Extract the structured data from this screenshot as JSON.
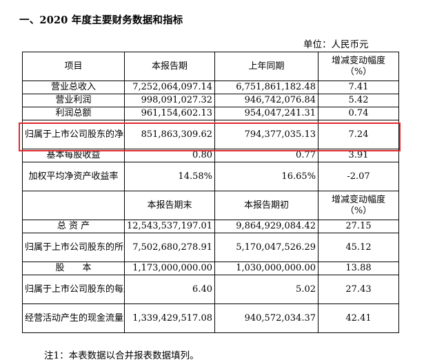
{
  "heading": "一、2020 年度主要财务数据和指标",
  "unit": "单位：人民币元",
  "section1": {
    "headers": [
      "项目",
      "本报告期",
      "上年同期",
      "增减变动幅度\n（%）"
    ],
    "rows": [
      [
        "营业总收入",
        "7,252,064,097.14",
        "6,751,861,182.48",
        "7.41"
      ],
      [
        "营业利润",
        "998,091,027.32",
        "946,742,076.84",
        "5.42"
      ],
      [
        "利润总额",
        "961,154,602.13",
        "954,047,241.31",
        "0.74"
      ],
      [
        "归属于上市公司股东的净利润",
        "851,863,309.62",
        "794,377,035.13",
        "7.24"
      ],
      [
        "基本每股收益",
        "0.80",
        "0.77",
        "3.91"
      ],
      [
        "加权平均净资产收益率",
        "14.58%",
        "16.65%",
        "-2.07"
      ]
    ]
  },
  "section2": {
    "headers": [
      "",
      "本报告期末",
      "本报告期初",
      "增减变动幅度\n（%）"
    ],
    "rows": [
      [
        "总 资 产",
        "12,543,537,197.01",
        "9,864,929,084.42",
        "27.15"
      ],
      [
        "归属于上市公司股东的所有者权益",
        "7,502,680,278.91",
        "5,170,047,526.29",
        "45.12"
      ],
      [
        "股　　本",
        "1,173,000,000.00",
        "1,030,000,000.00",
        "13.88"
      ],
      [
        "归属于上市公司股东的每股净资产",
        "6.40",
        "5.02",
        "27.43"
      ],
      [
        "经营活动产生的现金流量净额",
        "1,339,429,517.08",
        "940,572,034.37",
        "42.41"
      ]
    ]
  },
  "note": "注1：本表数据以合并报表数据填列。",
  "highlight_color": "#e0262b"
}
